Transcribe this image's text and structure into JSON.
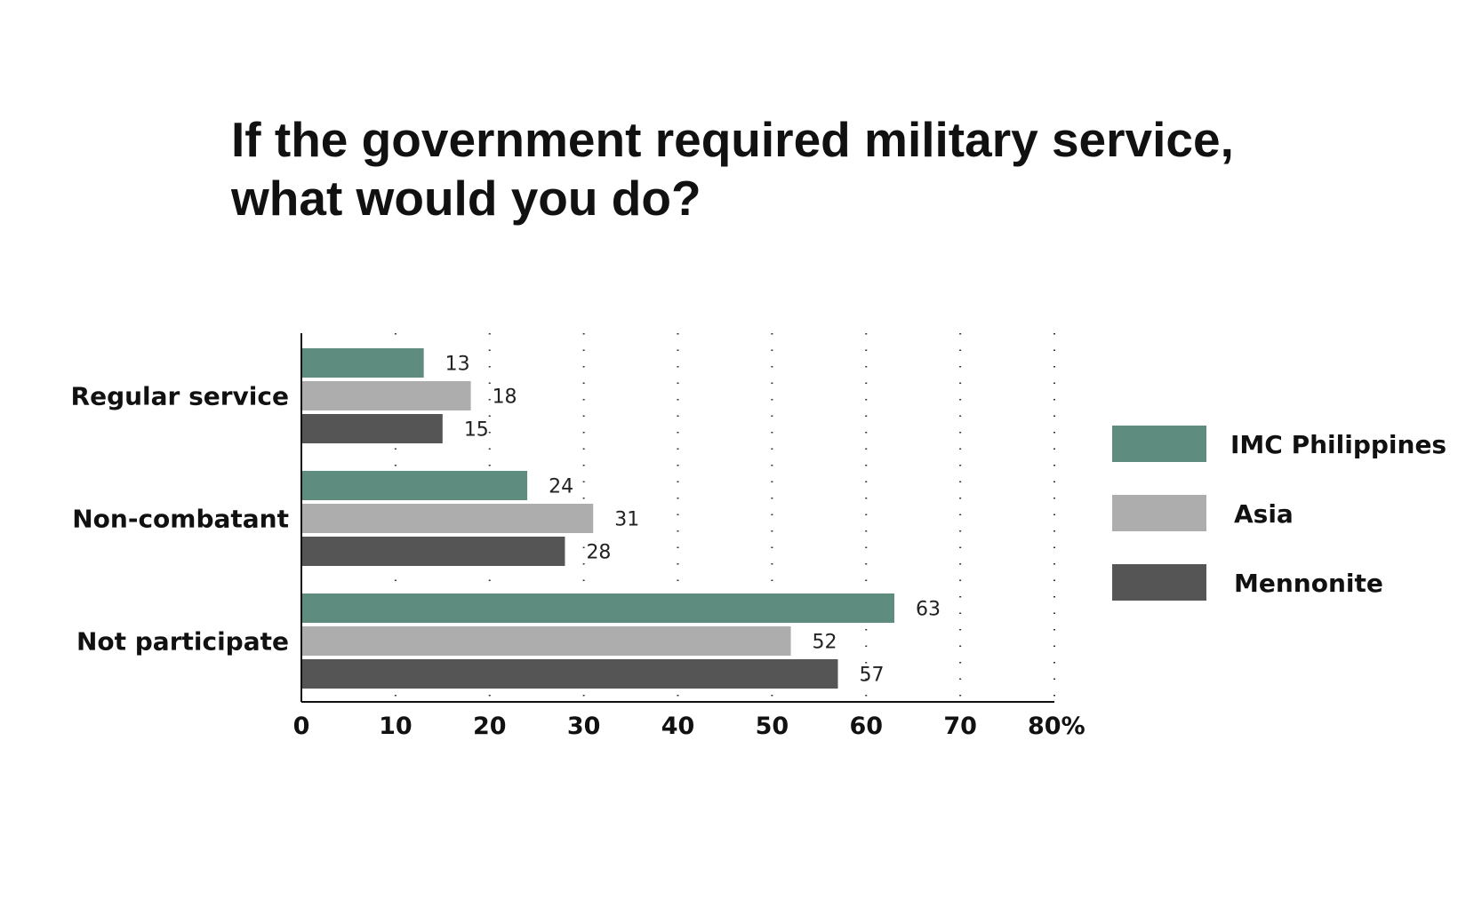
{
  "title_lines": [
    "If the government required military service,",
    "what would you do?"
  ],
  "chart_data": {
    "type": "bar",
    "orientation": "horizontal",
    "categories": [
      "Regular service",
      "Non-combatant",
      "Not participate"
    ],
    "series": [
      {
        "name": "IMC Philippines",
        "values": [
          13,
          24,
          63
        ],
        "color": "#5e8c7f"
      },
      {
        "name": "Asia",
        "values": [
          18,
          31,
          52
        ],
        "color": "#adadad"
      },
      {
        "name": "Mennonite",
        "values": [
          15,
          28,
          57
        ],
        "color": "#555555"
      }
    ],
    "xlim": [
      0,
      80
    ],
    "ticks": [
      "0",
      "10",
      "20",
      "30",
      "40",
      "50",
      "60",
      "70",
      "80%"
    ],
    "grid": "vertical dotted",
    "legend_position": "right"
  }
}
